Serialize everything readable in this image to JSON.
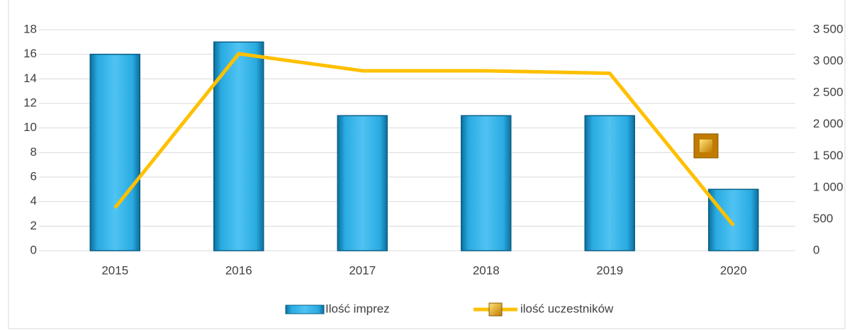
{
  "chart_data": {
    "type": "bar_line",
    "categories": [
      "2015",
      "2016",
      "2017",
      "2018",
      "2019",
      "2020"
    ],
    "series": [
      {
        "name": "Ilość imprez",
        "color": "#29abe2",
        "values": [
          16,
          17,
          11,
          11,
          11,
          5
        ]
      },
      {
        "name": "ilość uczestników",
        "color": "#ffc000",
        "axis": "y2",
        "values": [
          680,
          3120,
          2850,
          2850,
          2810,
          400
        ]
      }
    ],
    "ylim": [
      0,
      18
    ],
    "yticks": [
      0,
      2,
      4,
      6,
      8,
      10,
      12,
      14,
      16,
      18
    ],
    "y2lim": [
      0,
      3500
    ],
    "y2ticks": [
      0,
      500,
      {
        "value": 1000,
        "label": "1 000"
      },
      {
        "value": 1500,
        "label": "1 500"
      },
      {
        "value": 2000,
        "label": "2 000"
      },
      {
        "value": 2500,
        "label": "2 500"
      },
      {
        "value": 3000,
        "label": "3 000"
      },
      {
        "value": 3500,
        "label": "3 500"
      }
    ],
    "grid": true,
    "legend": "bottom"
  }
}
